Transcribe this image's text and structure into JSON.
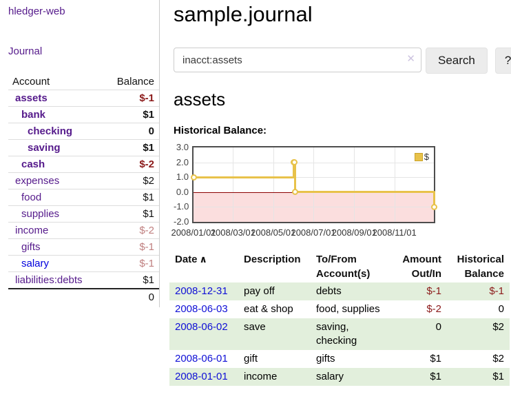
{
  "sidebar": {
    "brand": "hledger-web",
    "journal_label": "Journal",
    "header": {
      "account": "Account",
      "balance": "Balance"
    },
    "accounts": [
      {
        "name": "assets",
        "balance": "$-1"
      },
      {
        "name": "bank",
        "balance": "$1"
      },
      {
        "name": "checking",
        "balance": "0"
      },
      {
        "name": "saving",
        "balance": "$1"
      },
      {
        "name": "cash",
        "balance": "$-2"
      },
      {
        "name": "expenses",
        "balance": "$2"
      },
      {
        "name": "food",
        "balance": "$1"
      },
      {
        "name": "supplies",
        "balance": "$1"
      },
      {
        "name": "income",
        "balance": "$-2"
      },
      {
        "name": "gifts",
        "balance": "$-1"
      },
      {
        "name": "salary",
        "balance": "$-1"
      },
      {
        "name": "liabilities:debts",
        "balance": "$1"
      }
    ],
    "total": "0"
  },
  "main": {
    "title": "sample.journal",
    "search": {
      "value": "inacct:assets",
      "clear_icon": "✕",
      "search_button": "Search",
      "help_button": "?"
    },
    "account_heading": "assets",
    "chart_title": "Historical Balance:"
  },
  "chart_data": {
    "type": "line",
    "style": "step",
    "title": "Historical Balance of assets",
    "series": [
      {
        "name": "$",
        "points": [
          {
            "x": "2008-01-01",
            "y": 1
          },
          {
            "x": "2008-06-01",
            "y": 2
          },
          {
            "x": "2008-06-02",
            "y": 2
          },
          {
            "x": "2008-06-03",
            "y": 0
          },
          {
            "x": "2008-12-31",
            "y": -1
          }
        ]
      }
    ],
    "xlim": [
      "2008-01-01",
      "2008-12-31"
    ],
    "ylim": [
      -2,
      3
    ],
    "y_ticks": [
      3.0,
      2.0,
      1.0,
      0.0,
      -1.0,
      -2.0
    ],
    "x_ticks": [
      {
        "date": "2008-01-01",
        "label": "2008/01/01"
      },
      {
        "date": "2008-03-01",
        "label": "2008/03/01"
      },
      {
        "date": "2008-05-01",
        "label": "2008/05/01"
      },
      {
        "date": "2008-07-01",
        "label": "2008/07/01"
      },
      {
        "date": "2008-09-01",
        "label": "2008/09/01"
      },
      {
        "date": "2008-11-01",
        "label": "2008/11/01"
      }
    ],
    "grid": true,
    "legend_position": "top-right",
    "colors": {
      "line": "#e8c24a",
      "negative_region": "#fbdede",
      "zero_line": "#8b0000",
      "grid": "#e5e5e5"
    }
  },
  "register": {
    "headers": [
      "Date",
      "Description",
      "To/From Account(s)",
      "Amount Out/In",
      "Historical Balance"
    ],
    "sort_icon": "∧",
    "rows": [
      {
        "date": "2008-12-31",
        "description": "pay off",
        "accounts": "debts",
        "amount": "$-1",
        "balance": "$-1"
      },
      {
        "date": "2008-06-03",
        "description": "eat & shop",
        "accounts": "food, supplies",
        "amount": "$-2",
        "balance": "0"
      },
      {
        "date": "2008-06-02",
        "description": "save",
        "accounts": "saving, checking",
        "amount": "0",
        "balance": "$2"
      },
      {
        "date": "2008-06-01",
        "description": "gift",
        "accounts": "gifts",
        "amount": "$1",
        "balance": "$2"
      },
      {
        "date": "2008-01-01",
        "description": "income",
        "accounts": "salary",
        "amount": "$1",
        "balance": "$1"
      }
    ]
  }
}
